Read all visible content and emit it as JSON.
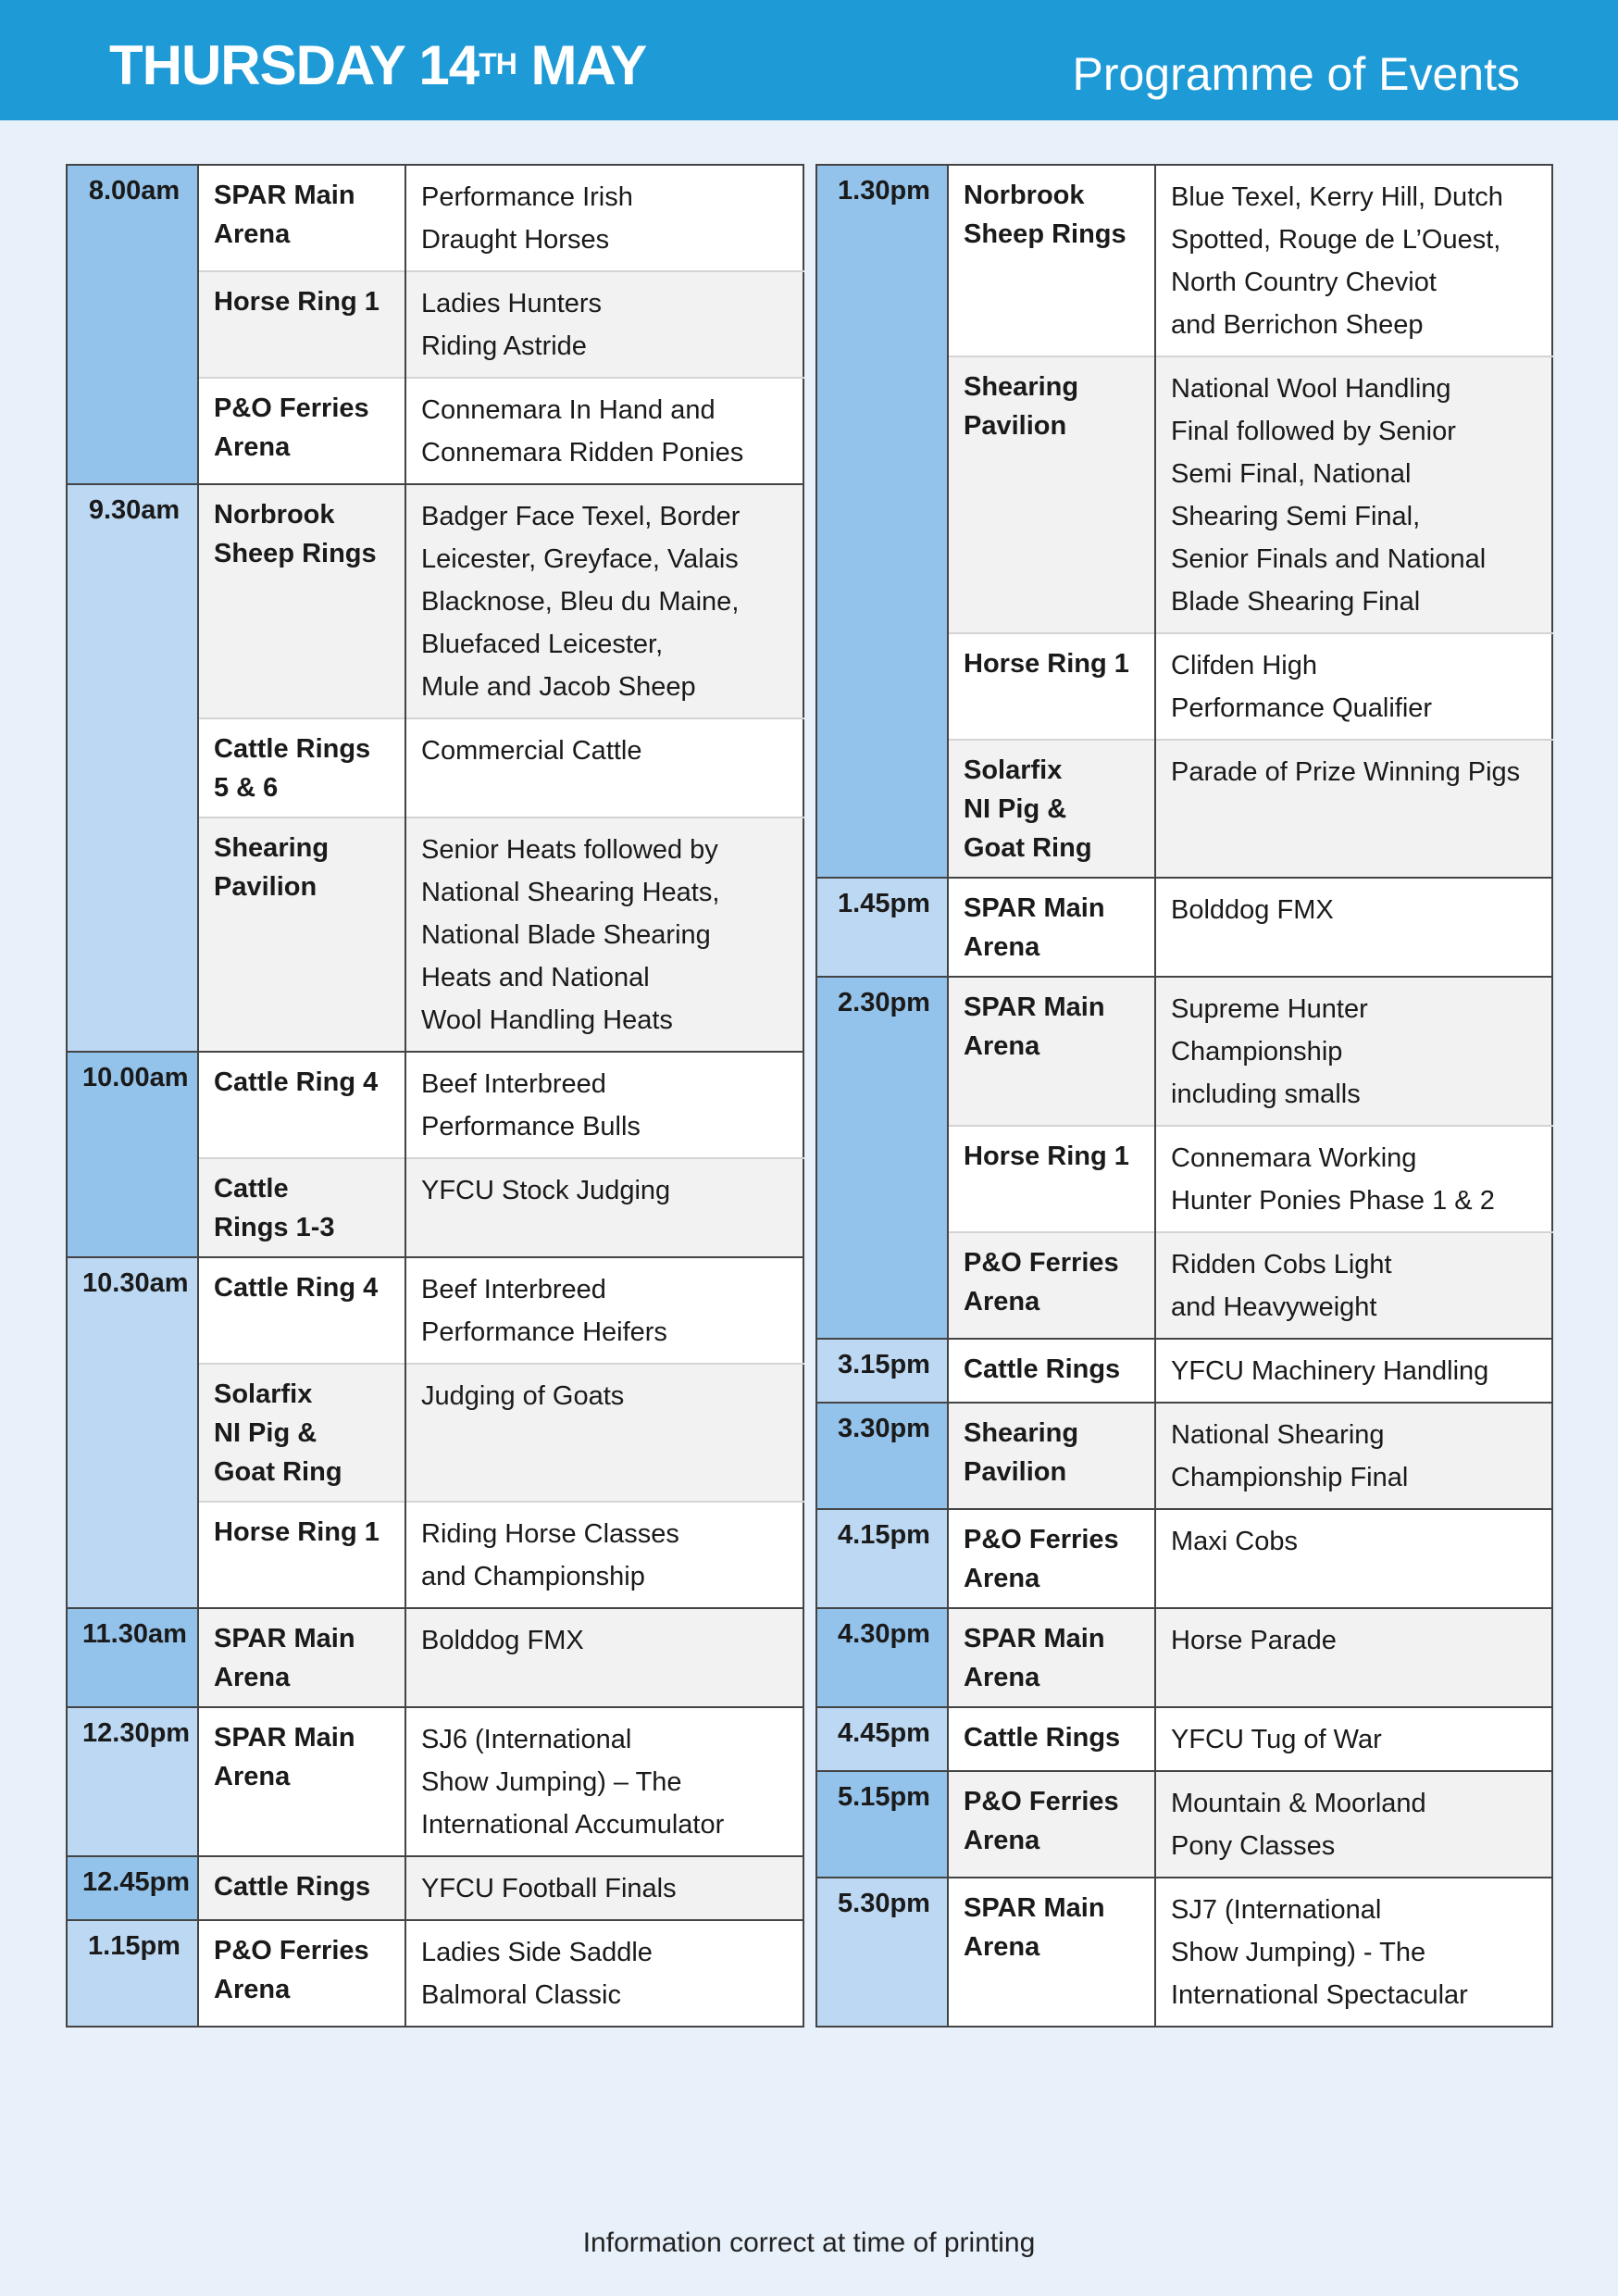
{
  "header": {
    "title_main": "THURSDAY 14",
    "title_sup": "TH",
    "title_end": " MAY",
    "subtitle": "Programme of Events"
  },
  "colors": {
    "header": "#1e9ad6",
    "time_dark": "#93c2ea",
    "time_light": "#bcd8f3",
    "background": "#e8f0fa"
  },
  "left": [
    {
      "time": "8.00am",
      "items": [
        {
          "venue": "SPAR Main\nArena",
          "event": "Performance Irish\nDraught Horses"
        },
        {
          "venue": "Horse Ring 1",
          "event": "Ladies Hunters\nRiding Astride"
        },
        {
          "venue": "P&O Ferries\nArena",
          "event": "Connemara In Hand and\nConnemara Ridden Ponies"
        }
      ]
    },
    {
      "time": "9.30am",
      "items": [
        {
          "venue": "Norbrook\nSheep Rings",
          "event": "Badger Face Texel, Border\nLeicester, Greyface, Valais\nBlacknose, Bleu du Maine,\nBluefaced Leicester,\nMule and Jacob Sheep"
        },
        {
          "venue": "Cattle Rings\n5 & 6",
          "event": "Commercial Cattle"
        },
        {
          "venue": "Shearing\nPavilion",
          "event": "Senior Heats followed by\nNational Shearing Heats,\nNational Blade Shearing\nHeats and National\nWool Handling Heats"
        }
      ]
    },
    {
      "time": "10.00am",
      "items": [
        {
          "venue": "Cattle Ring 4",
          "event": "Beef Interbreed\nPerformance Bulls"
        },
        {
          "venue": "Cattle\nRings 1-3",
          "event": "YFCU Stock Judging"
        }
      ]
    },
    {
      "time": "10.30am",
      "items": [
        {
          "venue": "Cattle Ring 4",
          "event": "Beef Interbreed\nPerformance Heifers"
        },
        {
          "venue": "Solarfix\nNI Pig &\nGoat Ring",
          "event": "Judging of Goats"
        },
        {
          "venue": "Horse Ring 1",
          "event": "Riding Horse Classes\nand Championship"
        }
      ]
    },
    {
      "time": "11.30am",
      "items": [
        {
          "venue": "SPAR Main\nArena",
          "event": "Bolddog FMX"
        }
      ]
    },
    {
      "time": "12.30pm",
      "items": [
        {
          "venue": "SPAR Main\nArena",
          "event": "SJ6 (International\nShow Jumping) – The\nInternational Accumulator"
        }
      ]
    },
    {
      "time": "12.45pm",
      "items": [
        {
          "venue": "Cattle Rings",
          "event": "YFCU Football Finals"
        }
      ]
    },
    {
      "time": "1.15pm",
      "items": [
        {
          "venue": "P&O Ferries\nArena",
          "event": "Ladies Side Saddle\nBalmoral Classic"
        }
      ]
    }
  ],
  "right": [
    {
      "time": "1.30pm",
      "items": [
        {
          "venue": "Norbrook\nSheep Rings",
          "event": "Blue Texel, Kerry Hill, Dutch\nSpotted, Rouge de L’Ouest,\nNorth Country Cheviot\nand Berrichon Sheep"
        },
        {
          "venue": "Shearing\nPavilion",
          "event": "National Wool Handling\nFinal followed by Senior\nSemi Final, National\nShearing Semi Final,\nSenior Finals and National\nBlade Shearing Final"
        },
        {
          "venue": "Horse Ring 1",
          "event": "Clifden High\nPerformance Qualifier"
        },
        {
          "venue": "Solarfix\nNI Pig &\nGoat Ring",
          "event": "Parade of Prize Winning Pigs"
        }
      ]
    },
    {
      "time": "1.45pm",
      "items": [
        {
          "venue": "SPAR Main\nArena",
          "event": "Bolddog FMX"
        }
      ]
    },
    {
      "time": "2.30pm",
      "items": [
        {
          "venue": "SPAR Main\nArena",
          "event": "Supreme Hunter\nChampionship\nincluding smalls"
        },
        {
          "venue": "Horse Ring 1",
          "event": "Connemara Working\nHunter Ponies Phase 1 & 2"
        },
        {
          "venue": "P&O Ferries\nArena",
          "event": "Ridden Cobs Light\nand Heavyweight"
        }
      ]
    },
    {
      "time": "3.15pm",
      "items": [
        {
          "venue": "Cattle Rings",
          "event": "YFCU Machinery Handling"
        }
      ]
    },
    {
      "time": "3.30pm",
      "items": [
        {
          "venue": "Shearing\nPavilion",
          "event": "National Shearing\nChampionship Final"
        }
      ]
    },
    {
      "time": "4.15pm",
      "items": [
        {
          "venue": "P&O Ferries\nArena",
          "event": "Maxi Cobs"
        }
      ]
    },
    {
      "time": "4.30pm",
      "items": [
        {
          "venue": "SPAR Main\nArena",
          "event": "Horse Parade"
        }
      ]
    },
    {
      "time": "4.45pm",
      "items": [
        {
          "venue": "Cattle Rings",
          "event": "YFCU Tug of War"
        }
      ]
    },
    {
      "time": "5.15pm",
      "items": [
        {
          "venue": "P&O Ferries\nArena",
          "event": "Mountain & Moorland\nPony Classes"
        }
      ]
    },
    {
      "time": "5.30pm",
      "items": [
        {
          "venue": "SPAR Main\nArena",
          "event": "SJ7 (International\nShow Jumping) - The\nInternational Spectacular"
        }
      ]
    }
  ],
  "footer": "Information correct at time of printing"
}
